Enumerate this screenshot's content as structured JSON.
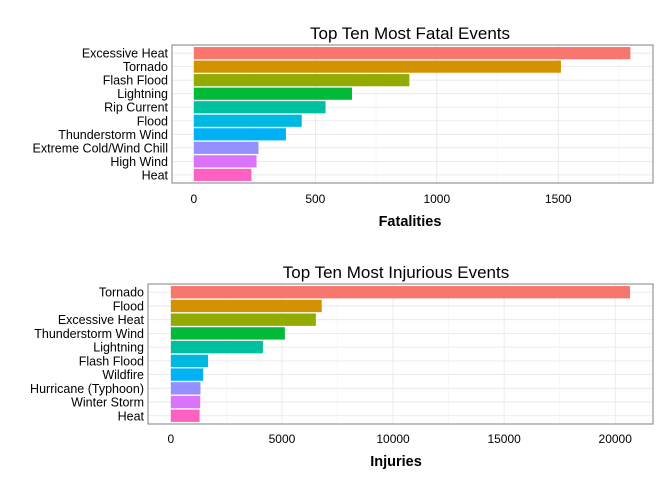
{
  "chart_data": [
    {
      "type": "bar",
      "orientation": "horizontal",
      "title": "Top Ten Most Fatal Events",
      "xlabel": "Fatalities",
      "ylabel": "",
      "categories": [
        "Excessive Heat",
        "Tornado",
        "Flash Flood",
        "Lightning",
        "Rip Current",
        "Flood",
        "Thunderstorm Wind",
        "Extreme Cold/Wind Chill",
        "High Wind",
        "Heat"
      ],
      "values": [
        1797,
        1511,
        887,
        651,
        542,
        444,
        379,
        266,
        258,
        237
      ],
      "xlim": [
        -90,
        1890
      ],
      "xticks": [
        0,
        500,
        1000,
        1500
      ],
      "xtick_labels": [
        "0",
        "500",
        "1000",
        "1500"
      ],
      "colors": [
        "#F8766D",
        "#D39200",
        "#93AA00",
        "#00BA38",
        "#00C19F",
        "#00B9E3",
        "#00B2F5",
        "#9590FF",
        "#DB72FB",
        "#FF61C3"
      ],
      "grid": true,
      "legend": "none"
    },
    {
      "type": "bar",
      "orientation": "horizontal",
      "title": "Top Ten Most Injurious Events",
      "xlabel": "Injuries",
      "ylabel": "",
      "categories": [
        "Tornado",
        "Flood",
        "Excessive Heat",
        "Thunderstorm Wind",
        "Lightning",
        "Flash Flood",
        "Wildfire",
        "Hurricane (Typhoon)",
        "Winter Storm",
        "Heat"
      ],
      "values": [
        20667,
        6789,
        6525,
        5129,
        4141,
        1674,
        1456,
        1333,
        1321,
        1292
      ],
      "xlim": [
        -1030,
        21700
      ],
      "xticks": [
        0,
        5000,
        10000,
        15000,
        20000
      ],
      "xtick_labels": [
        "0",
        "5000",
        "10000",
        "15000",
        "20000"
      ],
      "colors": [
        "#F8766D",
        "#D39200",
        "#93AA00",
        "#00BA38",
        "#00C19F",
        "#00B9E3",
        "#00B2F5",
        "#9590FF",
        "#DB72FB",
        "#FF61C3"
      ],
      "grid": true,
      "legend": "none"
    }
  ]
}
